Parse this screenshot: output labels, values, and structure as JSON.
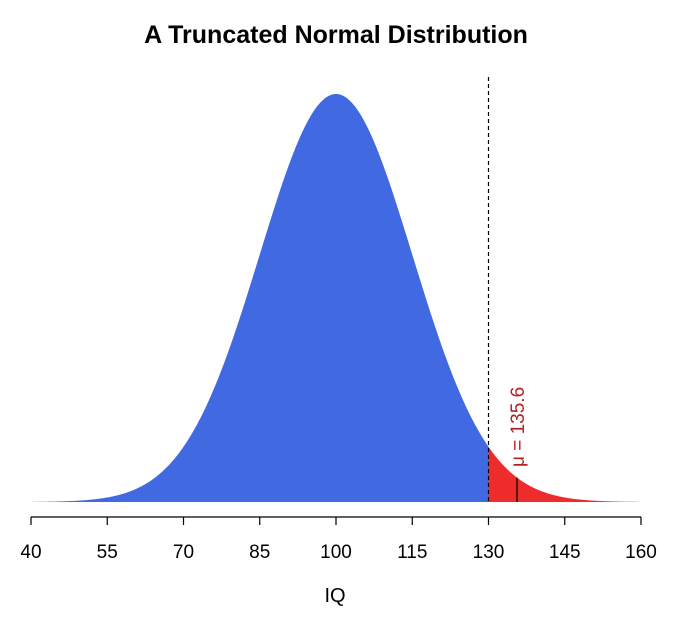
{
  "chart_data": {
    "type": "area",
    "title": "A Truncated Normal Distribution",
    "xlabel": "IQ",
    "ylabel": "",
    "distribution": {
      "family": "normal",
      "mean": 100,
      "sd": 15
    },
    "xlim": [
      40,
      160
    ],
    "x_ticks": [
      40,
      55,
      70,
      85,
      100,
      115,
      130,
      145,
      160
    ],
    "x_tick_labels": [
      "40",
      "55",
      "70",
      "85",
      "100",
      "115",
      "130",
      "145",
      "160"
    ],
    "truncation_point": 130,
    "truncated_mean": 135.6,
    "annotation": "μ = 135.6",
    "y_axis_shown": false,
    "grid": false,
    "series": [
      {
        "region": [
          40,
          130
        ],
        "color": "#4169E1"
      },
      {
        "region": [
          130,
          160
        ],
        "color": "#EE2C2C"
      }
    ],
    "colors": {
      "body_fill": "#4169E1",
      "tail_fill": "#EE2C2C",
      "annotation": "#B22222",
      "cutoff_line": "#000000",
      "mean_marker": "#000000"
    }
  }
}
